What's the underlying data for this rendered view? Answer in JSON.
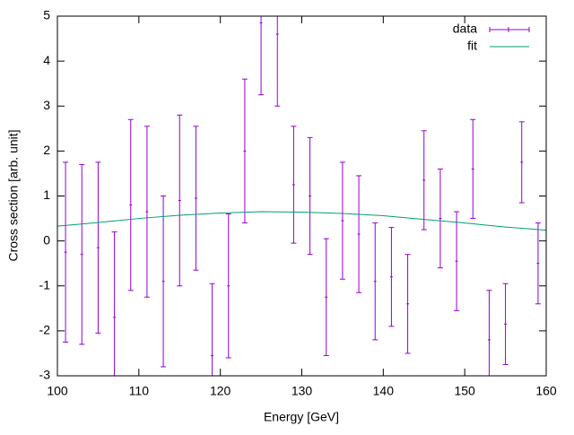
{
  "chart_data": {
    "type": "errorbar",
    "xlabel": "Energy [GeV]",
    "ylabel": "Cross section [arb. unit]",
    "xlim": [
      100,
      160
    ],
    "xticks": [
      100,
      110,
      120,
      130,
      140,
      150,
      160
    ],
    "ylim": [
      -3,
      5
    ],
    "yticks": [
      -3,
      -2,
      -1,
      0,
      1,
      2,
      3,
      4,
      5
    ],
    "legend": "top-right",
    "series": [
      {
        "name": "data",
        "type": "errorbar",
        "color": "#9400d3",
        "x": [
          101,
          103,
          105,
          107,
          109,
          111,
          113,
          115,
          117,
          119,
          121,
          123,
          125,
          127,
          129,
          131,
          133,
          135,
          137,
          139,
          141,
          143,
          145,
          147,
          149,
          151,
          153,
          155,
          157,
          159
        ],
        "values": [
          -0.25,
          -0.3,
          -0.15,
          -1.7,
          0.8,
          0.65,
          -0.9,
          0.9,
          0.95,
          -2.55,
          -1.0,
          2.0,
          4.85,
          4.6,
          1.25,
          1.0,
          -1.25,
          0.45,
          0.15,
          -0.9,
          -0.8,
          -1.4,
          1.35,
          0.5,
          -0.45,
          1.6,
          -2.2,
          -1.85,
          1.75,
          -0.5
        ],
        "errors": [
          2.0,
          2.0,
          1.9,
          1.9,
          1.9,
          1.9,
          1.9,
          1.9,
          1.6,
          1.6,
          1.6,
          1.6,
          1.6,
          1.6,
          1.3,
          1.3,
          1.3,
          1.3,
          1.3,
          1.3,
          1.1,
          1.1,
          1.1,
          1.1,
          1.1,
          1.1,
          1.1,
          0.9,
          0.9,
          0.9
        ]
      },
      {
        "name": "fit",
        "type": "line",
        "color": "#009e73",
        "x": [
          100,
          105,
          110,
          115,
          120,
          125,
          130,
          135,
          140,
          145,
          150,
          155,
          160
        ],
        "values": [
          0.33,
          0.41,
          0.5,
          0.57,
          0.62,
          0.65,
          0.64,
          0.61,
          0.56,
          0.48,
          0.4,
          0.31,
          0.24
        ]
      }
    ]
  }
}
